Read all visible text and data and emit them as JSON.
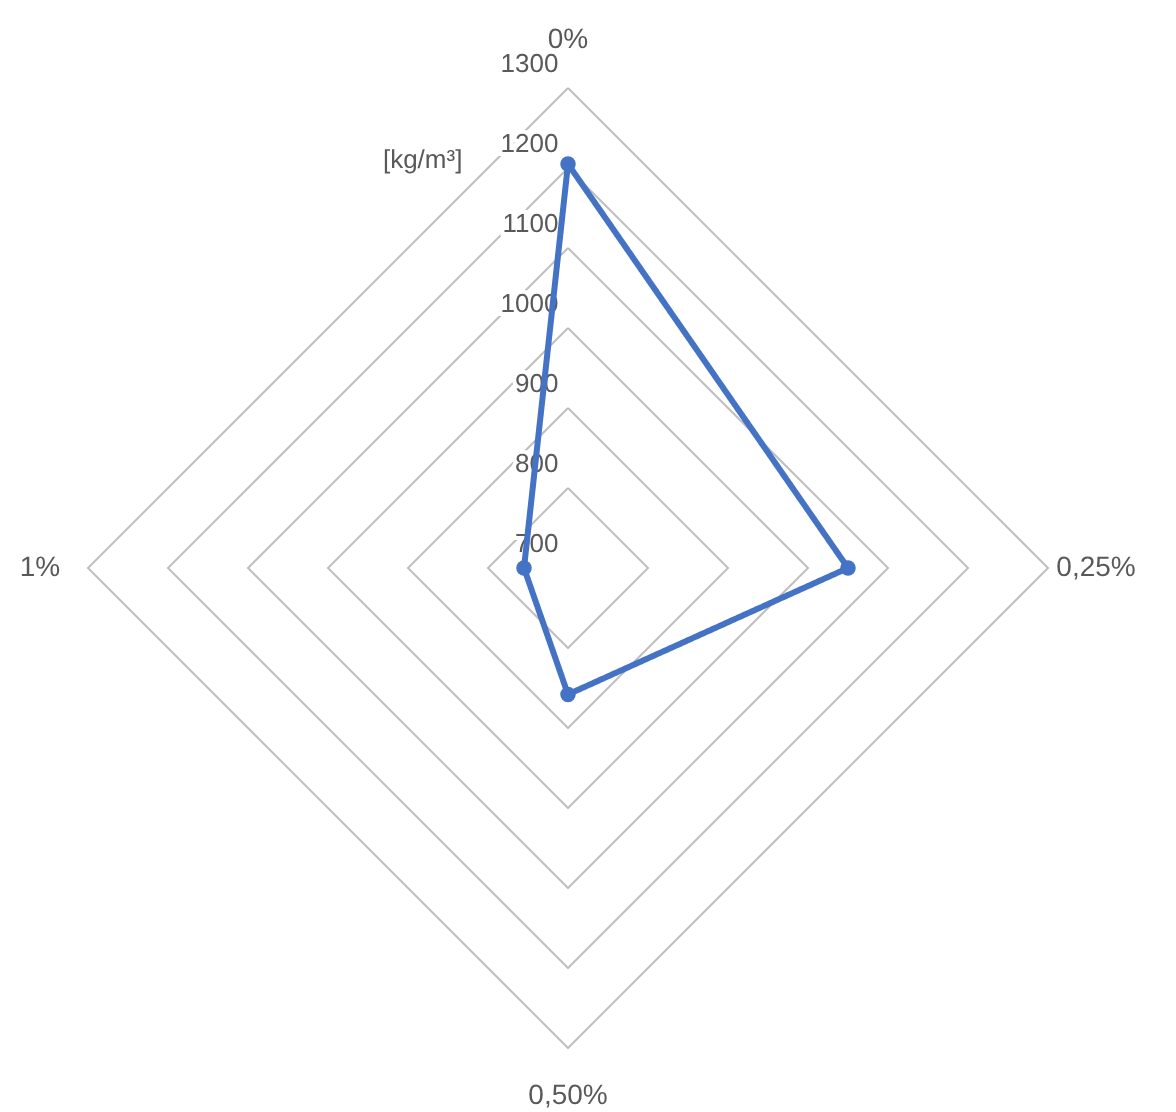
{
  "chart_data": {
    "type": "radar",
    "ylabel": "[kg/m³]",
    "categories": [
      "0%",
      "0,25%",
      "0,50%",
      "1%"
    ],
    "series": [
      {
        "color": "#4472c4",
        "values": [
          1205,
          1050,
          858,
          755
        ]
      }
    ],
    "ylim": [
      700,
      1300
    ],
    "yticks": [
      700,
      800,
      900,
      1000,
      1100,
      1200,
      1300
    ],
    "grid": true,
    "marker": "circle",
    "line_style": "solid"
  }
}
